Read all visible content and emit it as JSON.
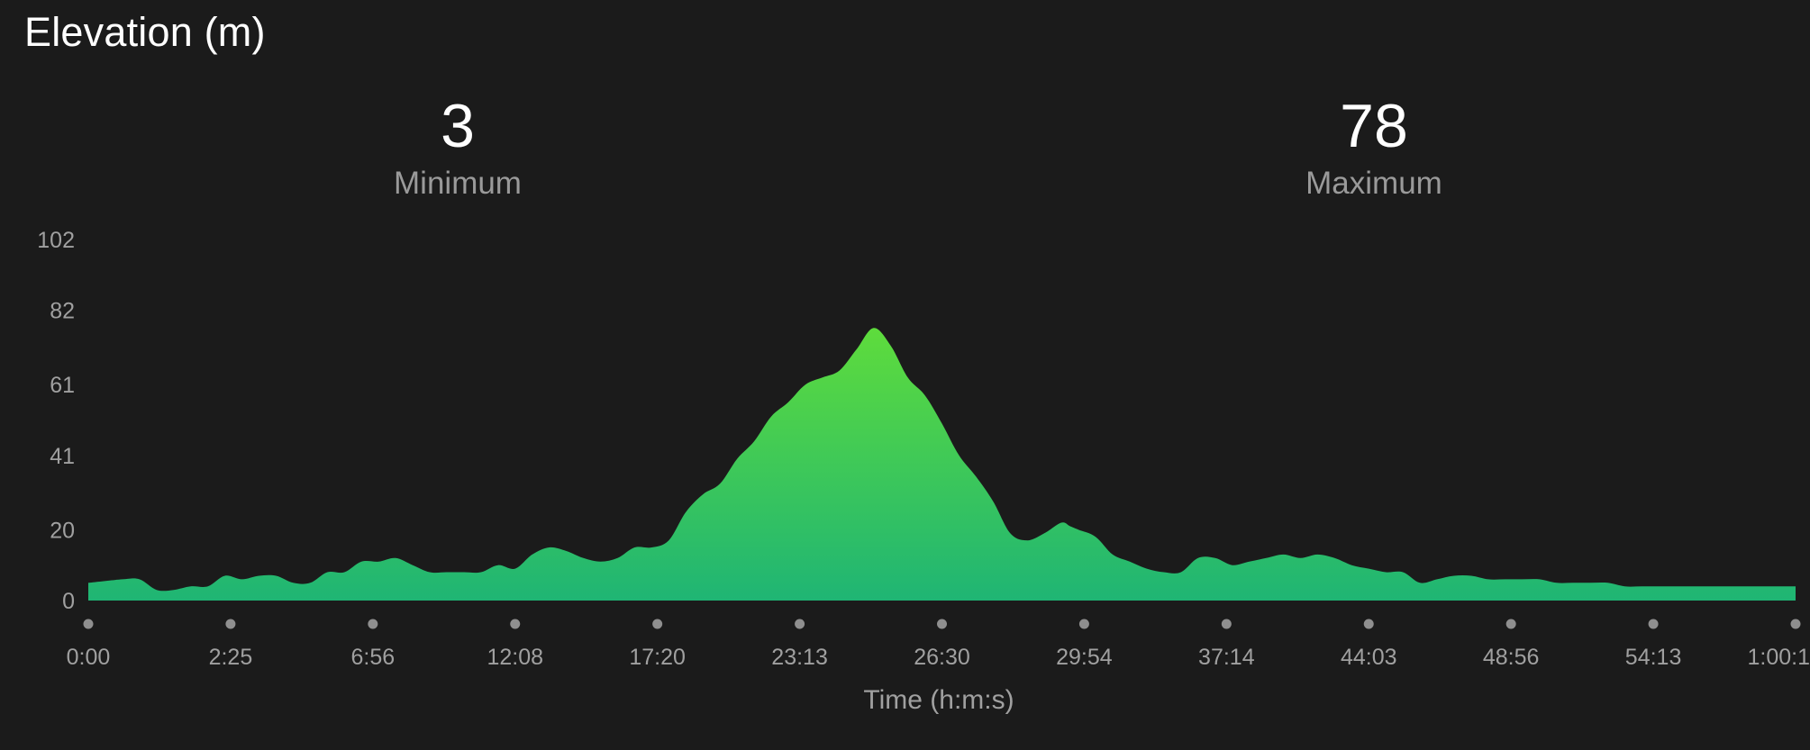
{
  "header": {
    "title": "Elevation (m)"
  },
  "stats": {
    "minimum": {
      "value": "3",
      "label": "Minimum"
    },
    "maximum": {
      "value": "78",
      "label": "Maximum"
    }
  },
  "colors": {
    "background": "#1b1b1b",
    "fill_top": "#5edc3c",
    "fill_bottom": "#1fb574",
    "tick_text": "#a0a0a0",
    "tick_dot": "#8f8f8f"
  },
  "chart_data": {
    "type": "area",
    "title": "Elevation (m)",
    "xlabel": "Time (h:m:s)",
    "ylabel": "",
    "ylim": [
      0,
      102
    ],
    "y_ticks": [
      0,
      20,
      41,
      61,
      82,
      102
    ],
    "x_ticks": [
      "0:00",
      "2:25",
      "6:56",
      "12:08",
      "17:20",
      "23:13",
      "26:30",
      "29:54",
      "37:14",
      "44:03",
      "48:56",
      "54:13",
      "1:00:1"
    ],
    "grid": false,
    "legend": "none",
    "x": [
      0,
      0.02,
      0.03,
      0.04,
      0.05,
      0.06,
      0.07,
      0.08,
      0.09,
      0.1,
      0.11,
      0.12,
      0.13,
      0.14,
      0.15,
      0.16,
      0.17,
      0.18,
      0.19,
      0.2,
      0.21,
      0.22,
      0.23,
      0.24,
      0.25,
      0.26,
      0.27,
      0.28,
      0.29,
      0.3,
      0.31,
      0.32,
      0.33,
      0.34,
      0.35,
      0.36,
      0.37,
      0.38,
      0.39,
      0.4,
      0.41,
      0.42,
      0.43,
      0.44,
      0.45,
      0.46,
      0.47,
      0.48,
      0.49,
      0.5,
      0.51,
      0.52,
      0.53,
      0.54,
      0.55,
      0.56,
      0.57,
      0.575,
      0.58,
      0.59,
      0.6,
      0.61,
      0.62,
      0.63,
      0.64,
      0.65,
      0.66,
      0.67,
      0.68,
      0.69,
      0.7,
      0.71,
      0.72,
      0.73,
      0.74,
      0.75,
      0.76,
      0.77,
      0.78,
      0.79,
      0.8,
      0.81,
      0.82,
      0.83,
      0.84,
      0.85,
      0.86,
      0.87,
      0.88,
      0.89,
      0.9,
      0.91,
      0.92,
      0.93,
      0.94,
      0.95,
      0.96,
      0.97,
      0.98,
      0.99,
      1.0
    ],
    "values": [
      5,
      6,
      6,
      3,
      3,
      4,
      4,
      7,
      6,
      7,
      7,
      5,
      5,
      8,
      8,
      11,
      11,
      12,
      10,
      8,
      8,
      8,
      8,
      10,
      9,
      13,
      15,
      14,
      12,
      11,
      12,
      15,
      15,
      17,
      25,
      30,
      33,
      40,
      45,
      52,
      56,
      61,
      63,
      65,
      71,
      77,
      72,
      63,
      58,
      50,
      41,
      35,
      28,
      19,
      17,
      19,
      22,
      21,
      20,
      18,
      13,
      11,
      9,
      8,
      8,
      12,
      12,
      10,
      11,
      12,
      13,
      12,
      13,
      12,
      10,
      9,
      8,
      8,
      5,
      6,
      7,
      7,
      6,
      6,
      6,
      6,
      5,
      5,
      5,
      5,
      4,
      4,
      4,
      4,
      4,
      4,
      4,
      4,
      4,
      4,
      4
    ]
  }
}
